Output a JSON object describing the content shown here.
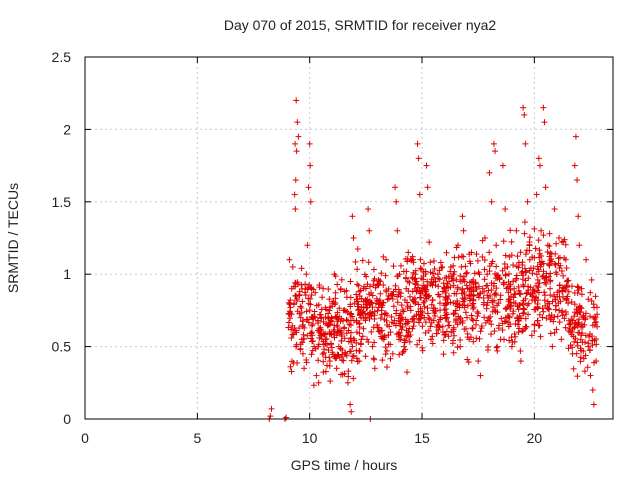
{
  "chart_data": {
    "type": "scatter",
    "title": "Day 070 of 2015, SRMTID for receiver nya2",
    "xlabel": "GPS time / hours",
    "ylabel": "SRMTID / TECUs",
    "xlim": [
      0,
      23.5
    ],
    "ylim": [
      0,
      2.5
    ],
    "xticks": [
      0,
      5,
      10,
      15,
      20
    ],
    "yticks": [
      0,
      0.5,
      1,
      1.5,
      2,
      2.5
    ],
    "xtick_labels": [
      "0",
      "5",
      "10",
      "15",
      "20"
    ],
    "ytick_labels": [
      "0",
      "0.5",
      "1",
      "1.5",
      "2",
      "2.5"
    ],
    "grid": true,
    "marker": "+",
    "color": "#e00000",
    "series": [
      {
        "name": "SRMTID",
        "points": [
          [
            8.2,
            0.0
          ],
          [
            8.3,
            0.07
          ],
          [
            8.25,
            0.02
          ],
          [
            8.9,
            0.0
          ],
          [
            8.95,
            0.01
          ],
          [
            12.7,
            0.0
          ],
          [
            9.1,
            1.1
          ],
          [
            9.2,
            0.9
          ],
          [
            9.25,
            1.05
          ],
          [
            9.3,
            0.8
          ],
          [
            9.35,
            1.9
          ],
          [
            9.4,
            2.2
          ],
          [
            9.45,
            2.05
          ],
          [
            9.5,
            1.95
          ],
          [
            9.42,
            1.85
          ],
          [
            9.38,
            1.65
          ],
          [
            9.33,
            1.55
          ],
          [
            9.36,
            1.45
          ],
          [
            9.6,
            0.7
          ],
          [
            9.65,
            0.55
          ],
          [
            9.7,
            0.45
          ],
          [
            9.75,
            0.35
          ],
          [
            9.8,
            0.9
          ],
          [
            9.85,
            1.0
          ],
          [
            9.9,
            1.2
          ],
          [
            9.95,
            1.6
          ],
          [
            10.0,
            1.9
          ],
          [
            10.02,
            1.75
          ],
          [
            10.05,
            1.5
          ],
          [
            10.1,
            0.6
          ],
          [
            10.2,
            0.5
          ],
          [
            10.3,
            0.3
          ],
          [
            10.4,
            0.25
          ],
          [
            10.5,
            0.7
          ],
          [
            10.6,
            0.9
          ],
          [
            10.7,
            0.55
          ],
          [
            10.8,
            0.65
          ],
          [
            10.9,
            0.4
          ],
          [
            11.0,
            0.8
          ],
          [
            11.1,
            1.0
          ],
          [
            11.2,
            0.35
          ],
          [
            11.3,
            0.5
          ],
          [
            11.4,
            0.6
          ],
          [
            11.5,
            0.75
          ],
          [
            11.6,
            0.45
          ],
          [
            11.7,
            0.25
          ],
          [
            11.8,
            0.1
          ],
          [
            11.85,
            0.05
          ],
          [
            11.9,
            1.4
          ],
          [
            11.95,
            1.25
          ],
          [
            12.0,
            0.8
          ],
          [
            12.1,
            0.6
          ],
          [
            12.2,
            0.4
          ],
          [
            12.3,
            0.55
          ],
          [
            12.4,
            0.9
          ],
          [
            12.5,
            0.7
          ],
          [
            12.6,
            1.45
          ],
          [
            12.65,
            1.3
          ],
          [
            12.7,
            0.8
          ],
          [
            12.8,
            0.5
          ],
          [
            12.9,
            0.35
          ],
          [
            13.0,
            0.65
          ],
          [
            13.1,
            0.95
          ],
          [
            13.2,
            0.75
          ],
          [
            13.3,
            0.55
          ],
          [
            13.4,
            1.1
          ],
          [
            13.5,
            0.85
          ],
          [
            13.6,
            0.6
          ],
          [
            13.7,
            0.45
          ],
          [
            13.8,
            1.6
          ],
          [
            13.85,
            1.5
          ],
          [
            13.9,
            1.3
          ],
          [
            14.0,
            1.0
          ],
          [
            14.1,
            0.7
          ],
          [
            14.2,
            0.5
          ],
          [
            14.3,
            0.9
          ],
          [
            14.4,
            0.6
          ],
          [
            14.5,
            0.75
          ],
          [
            14.6,
            1.1
          ],
          [
            14.7,
            0.8
          ],
          [
            14.8,
            1.9
          ],
          [
            14.85,
            1.8
          ],
          [
            14.9,
            1.55
          ],
          [
            15.0,
            0.9
          ],
          [
            15.1,
            0.7
          ],
          [
            15.2,
            1.75
          ],
          [
            15.25,
            1.6
          ],
          [
            15.3,
            0.85
          ],
          [
            15.4,
            0.55
          ],
          [
            15.5,
            0.75
          ],
          [
            15.6,
            0.95
          ],
          [
            15.7,
            0.65
          ],
          [
            15.8,
            0.8
          ],
          [
            15.9,
            1.05
          ],
          [
            16.0,
            0.9
          ],
          [
            16.1,
            0.7
          ],
          [
            16.2,
            0.85
          ],
          [
            16.3,
            0.6
          ],
          [
            16.4,
            1.0
          ],
          [
            16.5,
            0.75
          ],
          [
            16.6,
            1.2
          ],
          [
            16.7,
            0.5
          ],
          [
            16.8,
            1.4
          ],
          [
            16.85,
            1.3
          ],
          [
            16.9,
            0.95
          ],
          [
            17.0,
            0.7
          ],
          [
            17.1,
            0.55
          ],
          [
            17.2,
            1.15
          ],
          [
            17.3,
            0.85
          ],
          [
            17.4,
            0.65
          ],
          [
            17.5,
            0.4
          ],
          [
            17.6,
            0.3
          ],
          [
            17.7,
            0.9
          ],
          [
            17.8,
            1.25
          ],
          [
            17.9,
            1.0
          ],
          [
            18.0,
            1.7
          ],
          [
            18.1,
            1.5
          ],
          [
            18.2,
            1.9
          ],
          [
            18.25,
            1.85
          ],
          [
            18.3,
            1.2
          ],
          [
            18.4,
            0.8
          ],
          [
            18.5,
            0.55
          ],
          [
            18.6,
            1.75
          ],
          [
            18.7,
            1.45
          ],
          [
            18.8,
            1.05
          ],
          [
            18.9,
            0.7
          ],
          [
            19.0,
            0.5
          ],
          [
            19.1,
            0.9
          ],
          [
            19.2,
            1.3
          ],
          [
            19.3,
            0.6
          ],
          [
            19.4,
            0.4
          ],
          [
            19.5,
            2.15
          ],
          [
            19.55,
            2.1
          ],
          [
            19.6,
            1.9
          ],
          [
            19.7,
            1.5
          ],
          [
            19.8,
            1.1
          ],
          [
            19.9,
            0.85
          ],
          [
            20.0,
            0.65
          ],
          [
            20.1,
            1.55
          ],
          [
            20.2,
            1.8
          ],
          [
            20.25,
            1.75
          ],
          [
            20.3,
            1.3
          ],
          [
            20.4,
            2.15
          ],
          [
            20.45,
            2.05
          ],
          [
            20.5,
            1.6
          ],
          [
            20.6,
            1.2
          ],
          [
            20.7,
            0.9
          ],
          [
            20.8,
            0.5
          ],
          [
            20.9,
            1.45
          ],
          [
            21.0,
            1.0
          ],
          [
            21.1,
            0.75
          ],
          [
            21.2,
            0.55
          ],
          [
            21.3,
            0.9
          ],
          [
            21.4,
            1.1
          ],
          [
            21.5,
            0.8
          ],
          [
            21.6,
            0.6
          ],
          [
            21.7,
            0.45
          ],
          [
            21.8,
            1.75
          ],
          [
            21.85,
            1.95
          ],
          [
            21.9,
            1.65
          ],
          [
            21.95,
            1.4
          ],
          [
            22.0,
            1.2
          ],
          [
            22.1,
            0.9
          ],
          [
            22.2,
            0.7
          ],
          [
            22.3,
            1.1
          ],
          [
            22.4,
            0.5
          ],
          [
            22.5,
            0.3
          ],
          [
            22.6,
            0.2
          ],
          [
            22.65,
            0.1
          ],
          [
            22.7,
            0.65
          ],
          [
            22.75,
            0.4
          ]
        ],
        "bands": [
          {
            "x0": 9.05,
            "x1": 10.1,
            "y0": 0.25,
            "y1": 1.2,
            "n": 90
          },
          {
            "x0": 10.1,
            "x1": 12.0,
            "y0": 0.15,
            "y1": 1.15,
            "n": 190
          },
          {
            "x0": 12.0,
            "x1": 14.5,
            "y0": 0.25,
            "y1": 1.25,
            "n": 240
          },
          {
            "x0": 14.5,
            "x1": 17.0,
            "y0": 0.35,
            "y1": 1.3,
            "n": 260
          },
          {
            "x0": 17.0,
            "x1": 19.5,
            "y0": 0.3,
            "y1": 1.35,
            "n": 230
          },
          {
            "x0": 19.5,
            "x1": 21.5,
            "y0": 0.4,
            "y1": 1.4,
            "n": 200
          },
          {
            "x0": 21.5,
            "x1": 22.8,
            "y0": 0.2,
            "y1": 1.1,
            "n": 110
          }
        ]
      }
    ]
  }
}
